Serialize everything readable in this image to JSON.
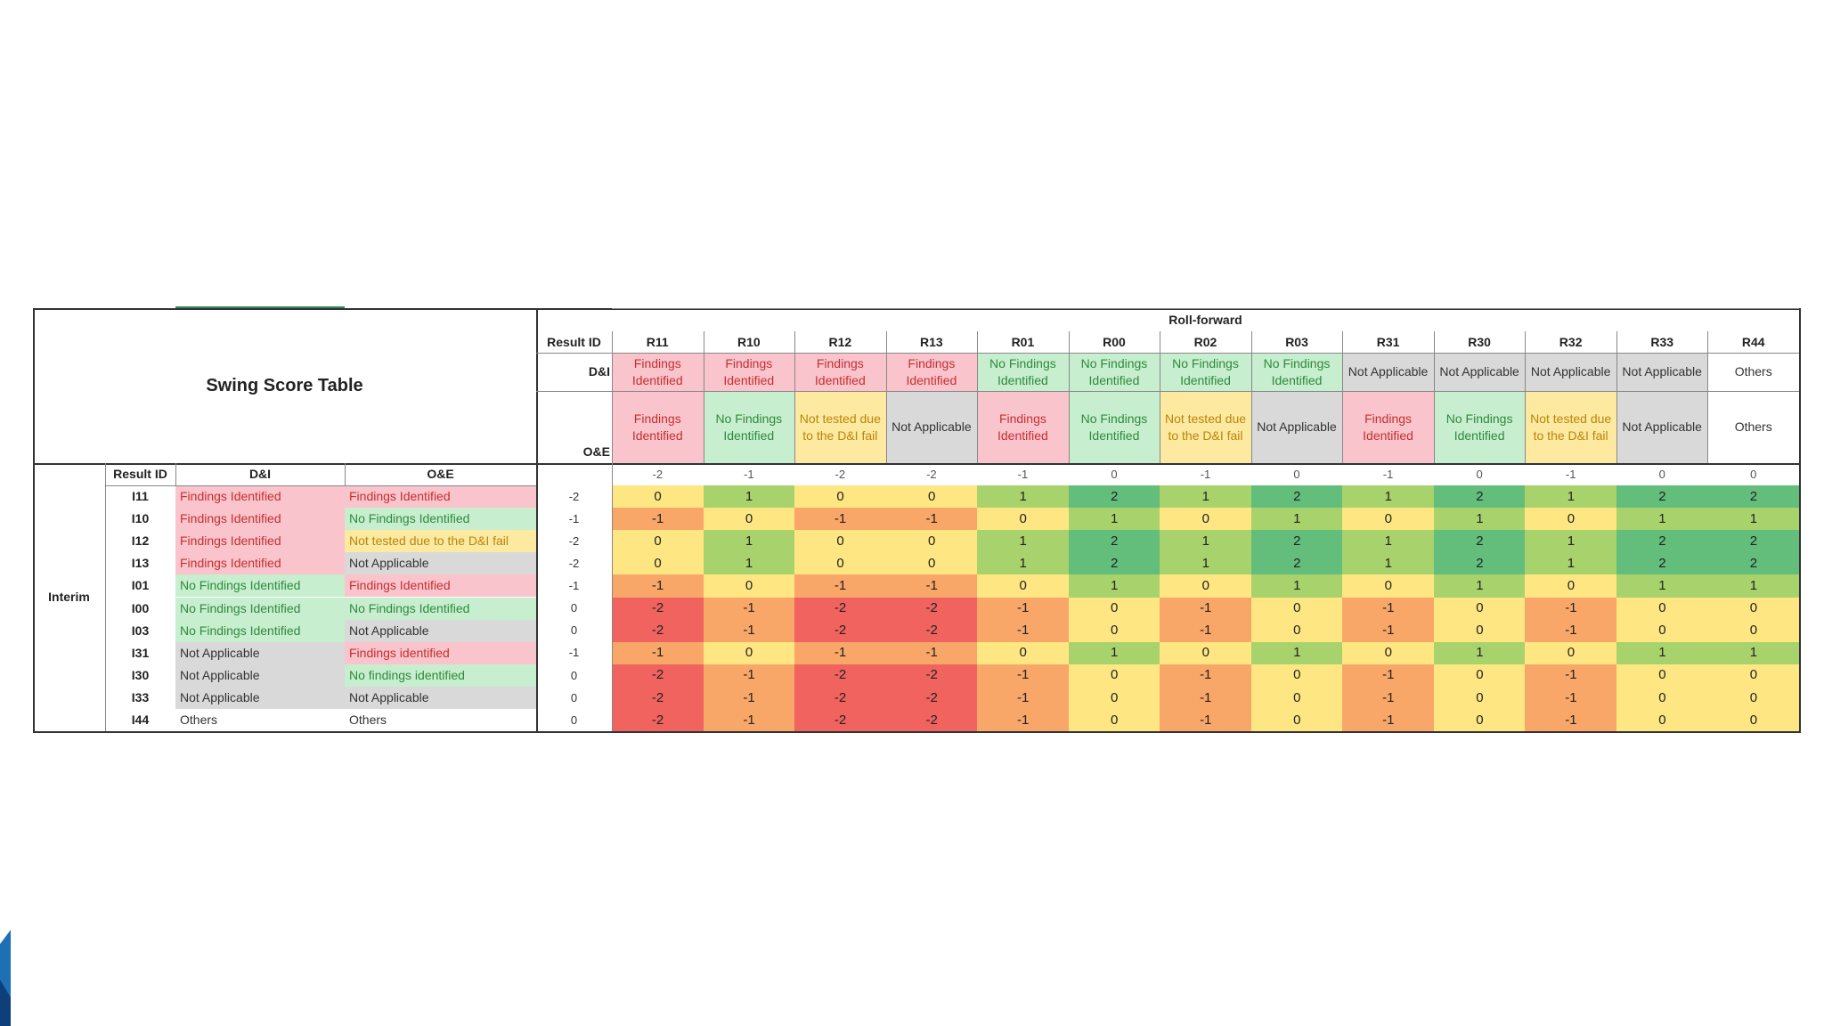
{
  "title": "Swing Score Table",
  "group_label": "Roll-forward",
  "row_group_label": "Interim",
  "header": {
    "result_id": "Result ID",
    "di": "D&I",
    "oe": "O&E"
  },
  "columns": [
    {
      "id": "R11",
      "di": {
        "text": "Findings Identified",
        "bg": "#f9c4cc",
        "fg": "#c62f2f"
      },
      "oe": {
        "text": "Findings Identified",
        "bg": "#f9c4cc",
        "fg": "#c62f2f"
      },
      "score": -2
    },
    {
      "id": "R10",
      "di": {
        "text": "Findings Identified",
        "bg": "#f9c4cc",
        "fg": "#c62f2f"
      },
      "oe": {
        "text": "No Findings Identified",
        "bg": "#c7eecf",
        "fg": "#2f8a3b"
      },
      "score": -1
    },
    {
      "id": "R12",
      "di": {
        "text": "Findings Identified",
        "bg": "#f9c4cc",
        "fg": "#c62f2f"
      },
      "oe": {
        "text": "Not tested due to the D&I fail",
        "bg": "#fde9a0",
        "fg": "#b8860b"
      },
      "score": -2
    },
    {
      "id": "R13",
      "di": {
        "text": "Findings Identified",
        "bg": "#f9c4cc",
        "fg": "#c62f2f"
      },
      "oe": {
        "text": "Not Applicable",
        "bg": "#d9d9d9",
        "fg": "#333333"
      },
      "score": -2
    },
    {
      "id": "R01",
      "di": {
        "text": "No Findings Identified",
        "bg": "#c7eecf",
        "fg": "#2f8a3b"
      },
      "oe": {
        "text": "Findings Identified",
        "bg": "#f9c4cc",
        "fg": "#c62f2f"
      },
      "score": -1
    },
    {
      "id": "R00",
      "di": {
        "text": "No Findings Identified",
        "bg": "#c7eecf",
        "fg": "#2f8a3b"
      },
      "oe": {
        "text": "No Findings Identified",
        "bg": "#c7eecf",
        "fg": "#2f8a3b"
      },
      "score": 0
    },
    {
      "id": "R02",
      "di": {
        "text": "No Findings Identified",
        "bg": "#c7eecf",
        "fg": "#2f8a3b"
      },
      "oe": {
        "text": "Not tested due to the D&I fail",
        "bg": "#fde9a0",
        "fg": "#b8860b"
      },
      "score": -1
    },
    {
      "id": "R03",
      "di": {
        "text": "No Findings Identified",
        "bg": "#c7eecf",
        "fg": "#2f8a3b"
      },
      "oe": {
        "text": "Not Applicable",
        "bg": "#d9d9d9",
        "fg": "#333333"
      },
      "score": 0
    },
    {
      "id": "R31",
      "di": {
        "text": "Not Applicable",
        "bg": "#d9d9d9",
        "fg": "#333333"
      },
      "oe": {
        "text": "Findings Identified",
        "bg": "#f9c4cc",
        "fg": "#c62f2f"
      },
      "score": -1
    },
    {
      "id": "R30",
      "di": {
        "text": "Not Applicable",
        "bg": "#d9d9d9",
        "fg": "#333333"
      },
      "oe": {
        "text": "No Findings Identified",
        "bg": "#c7eecf",
        "fg": "#2f8a3b"
      },
      "score": 0
    },
    {
      "id": "R32",
      "di": {
        "text": "Not Applicable",
        "bg": "#d9d9d9",
        "fg": "#333333"
      },
      "oe": {
        "text": "Not tested due to the D&I fail",
        "bg": "#fde9a0",
        "fg": "#b8860b"
      },
      "score": -1
    },
    {
      "id": "R33",
      "di": {
        "text": "Not Applicable",
        "bg": "#d9d9d9",
        "fg": "#333333"
      },
      "oe": {
        "text": "Not Applicable",
        "bg": "#d9d9d9",
        "fg": "#333333"
      },
      "score": 0
    },
    {
      "id": "R44",
      "di": {
        "text": "Others",
        "bg": "#ffffff",
        "fg": "#333333"
      },
      "oe": {
        "text": "Others",
        "bg": "#ffffff",
        "fg": "#333333"
      },
      "score": 0
    }
  ],
  "rows": [
    {
      "id": "I11",
      "di": {
        "text": "Findings Identified",
        "bg": "#f9c4cc",
        "fg": "#c62f2f"
      },
      "oe": {
        "text": "Findings Identified",
        "bg": "#f9c4cc",
        "fg": "#c62f2f"
      },
      "score": -2,
      "values": [
        0,
        1,
        0,
        0,
        1,
        2,
        1,
        2,
        1,
        2,
        1,
        2,
        2
      ]
    },
    {
      "id": "I10",
      "di": {
        "text": "Findings Identified",
        "bg": "#f9c4cc",
        "fg": "#c62f2f"
      },
      "oe": {
        "text": "No Findings Identified",
        "bg": "#c7eecf",
        "fg": "#2f8a3b"
      },
      "score": -1,
      "values": [
        -1,
        0,
        -1,
        -1,
        0,
        1,
        0,
        1,
        0,
        1,
        0,
        1,
        1
      ]
    },
    {
      "id": "I12",
      "di": {
        "text": "Findings Identified",
        "bg": "#f9c4cc",
        "fg": "#c62f2f"
      },
      "oe": {
        "text": "Not tested due to the D&I fail",
        "bg": "#fde9a0",
        "fg": "#b8860b"
      },
      "score": -2,
      "values": [
        0,
        1,
        0,
        0,
        1,
        2,
        1,
        2,
        1,
        2,
        1,
        2,
        2
      ]
    },
    {
      "id": "I13",
      "di": {
        "text": "Findings Identified",
        "bg": "#f9c4cc",
        "fg": "#c62f2f"
      },
      "oe": {
        "text": "Not Applicable",
        "bg": "#d9d9d9",
        "fg": "#333333"
      },
      "score": -2,
      "values": [
        0,
        1,
        0,
        0,
        1,
        2,
        1,
        2,
        1,
        2,
        1,
        2,
        2
      ]
    },
    {
      "id": "I01",
      "di": {
        "text": "No Findings Identified",
        "bg": "#c7eecf",
        "fg": "#2f8a3b"
      },
      "oe": {
        "text": "Findings Identified",
        "bg": "#f9c4cc",
        "fg": "#c62f2f"
      },
      "score": -1,
      "values": [
        -1,
        0,
        -1,
        -1,
        0,
        1,
        0,
        1,
        0,
        1,
        0,
        1,
        1
      ]
    },
    {
      "id": "I00",
      "di": {
        "text": "No Findings Identified",
        "bg": "#c7eecf",
        "fg": "#2f8a3b"
      },
      "oe": {
        "text": "No Findings Identified",
        "bg": "#c7eecf",
        "fg": "#2f8a3b"
      },
      "score": 0,
      "values": [
        -2,
        -1,
        -2,
        -2,
        -1,
        0,
        -1,
        0,
        -1,
        0,
        -1,
        0,
        0
      ]
    },
    {
      "id": "I03",
      "di": {
        "text": "No Findings Identified",
        "bg": "#c7eecf",
        "fg": "#2f8a3b"
      },
      "oe": {
        "text": "Not Applicable",
        "bg": "#d9d9d9",
        "fg": "#333333"
      },
      "score": 0,
      "values": [
        -2,
        -1,
        -2,
        -2,
        -1,
        0,
        -1,
        0,
        -1,
        0,
        -1,
        0,
        0
      ]
    },
    {
      "id": "I31",
      "di": {
        "text": "Not Applicable",
        "bg": "#d9d9d9",
        "fg": "#333333"
      },
      "oe": {
        "text": "Findings identified",
        "bg": "#f9c4cc",
        "fg": "#c62f2f"
      },
      "score": -1,
      "values": [
        -1,
        0,
        -1,
        -1,
        0,
        1,
        0,
        1,
        0,
        1,
        0,
        1,
        1
      ]
    },
    {
      "id": "I30",
      "di": {
        "text": "Not Applicable",
        "bg": "#d9d9d9",
        "fg": "#333333"
      },
      "oe": {
        "text": "No findings identified",
        "bg": "#c7eecf",
        "fg": "#2f8a3b"
      },
      "score": 0,
      "values": [
        -2,
        -1,
        -2,
        -2,
        -1,
        0,
        -1,
        0,
        -1,
        0,
        -1,
        0,
        0
      ]
    },
    {
      "id": "I33",
      "di": {
        "text": "Not Applicable",
        "bg": "#d9d9d9",
        "fg": "#333333"
      },
      "oe": {
        "text": "Not Applicable",
        "bg": "#d9d9d9",
        "fg": "#333333"
      },
      "score": 0,
      "values": [
        -2,
        -1,
        -2,
        -2,
        -1,
        0,
        -1,
        0,
        -1,
        0,
        -1,
        0,
        0
      ]
    },
    {
      "id": "I44",
      "di": {
        "text": "Others",
        "bg": "#ffffff",
        "fg": "#333333"
      },
      "oe": {
        "text": "Others",
        "bg": "#ffffff",
        "fg": "#333333"
      },
      "score": 0,
      "values": [
        -2,
        -1,
        -2,
        -2,
        -1,
        0,
        -1,
        0,
        -1,
        0,
        -1,
        0,
        0
      ]
    }
  ],
  "value_colors": [
    {
      "value": 2,
      "color": "#63be7b"
    },
    {
      "value": 1,
      "color": "#a8d26c"
    },
    {
      "value": 0,
      "color": "#fee783"
    },
    {
      "value": -1,
      "color": "#f8a768"
    },
    {
      "value": -2,
      "color": "#f1635f"
    }
  ]
}
